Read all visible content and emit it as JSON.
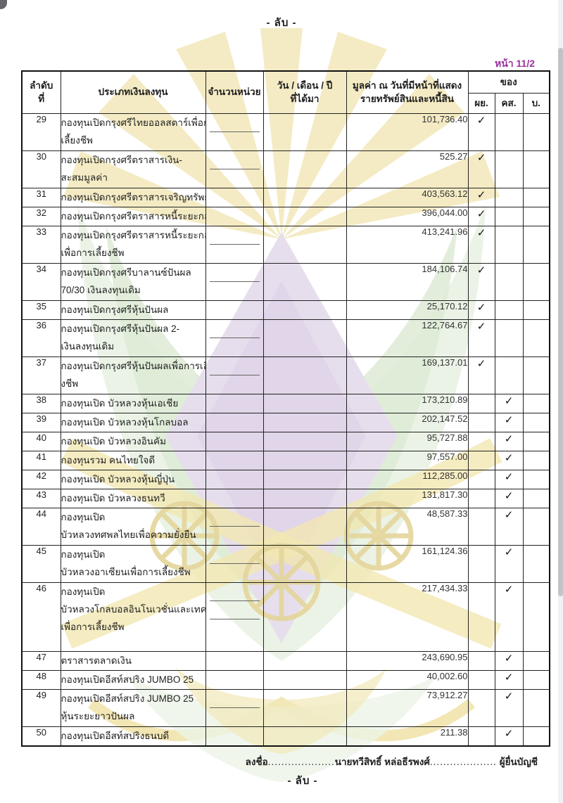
{
  "header": {
    "classification": "- ลับ -",
    "page_label": "หน้า 11/2"
  },
  "table": {
    "columns": {
      "no_line1": "ลำดับ",
      "no_line2": "ที่",
      "type": "ประเภทเงินลงทุน",
      "units": "จำนวนหน่วย",
      "date_line1": "วัน / เดือน / ปี",
      "date_line2": "ที่ได้มา",
      "value_line1": "มูลค่า ณ วันที่มีหน้าที่แสดง",
      "value_line2": "รายทรัพย์สินและหนี้สิน",
      "of": "ของ",
      "of_sub": [
        "ผย.",
        "คส.",
        "บ."
      ]
    },
    "check_mark": "✓",
    "rows": [
      {
        "no": "29",
        "name_lines": [
          "กองทุนเปิดกรุงศรีไทยออลสตาร์เพื่อการ",
          "เลี้ยงชีพ"
        ],
        "units": "",
        "date": "",
        "value": "101,736.40",
        "check": "ผย."
      },
      {
        "no": "30",
        "name_lines": [
          "กองทุนเปิดกรุงศรีตราสารเงิน-",
          "สะสมมูลค่า"
        ],
        "units": "",
        "date": "",
        "value": "525.27",
        "check": "ผย."
      },
      {
        "no": "31",
        "name_lines": [
          "กองทุนเปิดกรุงศรีตราสารเจริญทรัพย์"
        ],
        "units": "",
        "date": "",
        "value": "403,563.12",
        "check": "ผย."
      },
      {
        "no": "32",
        "name_lines": [
          "กองทุนเปิดกรุงศรีตราสารหนี้ระยะกลาง"
        ],
        "units": "",
        "date": "",
        "value": "396,044.00",
        "check": "ผย."
      },
      {
        "no": "33",
        "name_lines": [
          "กองทุนเปิดกรุงศรีตราสารหนี้ระยะกลาง",
          "เพื่อการเลี้ยงชีพ"
        ],
        "units": "",
        "date": "",
        "value": "413,241.96",
        "check": "ผย."
      },
      {
        "no": "34",
        "name_lines": [
          "กองทุนเปิดกรุงศรีบาลานซ์ปันผล",
          "70/30 เงินลงทุนเดิม"
        ],
        "units": "",
        "date": "",
        "value": "184,106.74",
        "check": "ผย."
      },
      {
        "no": "35",
        "name_lines": [
          "กองทุนเปิดกรุงศรีหุ้นปันผล"
        ],
        "units": "",
        "date": "",
        "value": "25,170.12",
        "check": "ผย."
      },
      {
        "no": "36",
        "name_lines": [
          "กองทุนเปิดกรุงศรีหุ้นปันผล 2-",
          "เงินลงทุนเดิม"
        ],
        "units": "",
        "date": "",
        "value": "122,764.67",
        "check": "ผย."
      },
      {
        "no": "37",
        "name_lines": [
          "กองทุนเปิดกรุงศรีหุ้นปันผลเพื่อการเลี้ย",
          "งชีพ"
        ],
        "units": "",
        "date": "",
        "value": "169,137.01",
        "check": "ผย."
      },
      {
        "no": "38",
        "name_lines": [
          "กองทุนเปิด บัวหลวงหุ้นเอเชีย"
        ],
        "units": "",
        "date": "",
        "value": "173,210.89",
        "check": "คส."
      },
      {
        "no": "39",
        "name_lines": [
          "กองทุนเปิด บัวหลวงหุ้นโกลบอล"
        ],
        "units": "",
        "date": "",
        "value": "202,147.52",
        "check": "คส."
      },
      {
        "no": "40",
        "name_lines": [
          "กองทุนเปิด บัวหลวงอินคัม"
        ],
        "units": "",
        "date": "",
        "value": "95,727.88",
        "check": "คส."
      },
      {
        "no": "41",
        "name_lines": [
          "กองทุนรวม คนไทยใจดี"
        ],
        "units": "",
        "date": "",
        "value": "97,557.00",
        "check": "คส."
      },
      {
        "no": "42",
        "name_lines": [
          "กองทุนเปิด บัวหลวงหุ้นญี่ปุ่น"
        ],
        "units": "",
        "date": "",
        "value": "112,285.00",
        "check": "คส."
      },
      {
        "no": "43",
        "name_lines": [
          "กองทุนเปิด บัวหลวงธนทวี"
        ],
        "units": "",
        "date": "",
        "value": "131,817.30",
        "check": "คส."
      },
      {
        "no": "44",
        "name_lines": [
          "กองทุนเปิด",
          "บัวหลวงทศพลไทยเพื่อความยั่งยืน"
        ],
        "units": "",
        "date": "",
        "value": "48,587.33",
        "check": "คส."
      },
      {
        "no": "45",
        "name_lines": [
          "กองทุนเปิด",
          "บัวหลวงอาเซียนเพื่อการเลี้ยงชีพ"
        ],
        "units": "",
        "date": "",
        "value": "161,124.36",
        "check": "คส."
      },
      {
        "no": "46",
        "name_lines": [
          "กองทุนเปิด",
          "บัวหลวงโกลบอลอินโนเวชั่นและเทคโนโล",
          "เพื่อการเลี้ยงชีพ"
        ],
        "units": "",
        "date": "",
        "value": "217,434.33",
        "check": "คส."
      },
      {
        "no": "47",
        "name_lines": [
          "ตราสารตลาดเงิน"
        ],
        "units": "",
        "date": "",
        "value": "243,690.95",
        "check": "คส."
      },
      {
        "no": "48",
        "name_lines": [
          "กองทุนเปิดอีสท์สปริง JUMBO 25"
        ],
        "units": "",
        "date": "",
        "value": "40,002.60",
        "check": "คส."
      },
      {
        "no": "49",
        "name_lines": [
          "กองทุนเปิดอีสท์สปริง JUMBO 25",
          "หุ้นระยะยาวปันผล"
        ],
        "units": "",
        "date": "",
        "value": "73,912.27",
        "check": "คส."
      },
      {
        "no": "50",
        "name_lines": [
          "กองทุนเปิดอีสท์สปริงธนบดี"
        ],
        "units": "",
        "date": "",
        "value": "211.38",
        "check": "คส."
      }
    ]
  },
  "footer": {
    "sign_label": "ลงชื่อ",
    "dots_left": "....................",
    "signer_name": "นายทวีสิทธิ์ หล่อธีรพงศ์",
    "dots_right": "....................",
    "role": "ผู้ยื่นบัญชี",
    "classification": "- ลับ -"
  },
  "colors": {
    "page_label": "#993399",
    "border": "#222222",
    "check": "#111111",
    "watermark_yellow": "#f2e7b4",
    "watermark_green": "#dcead4",
    "watermark_purple": "#e3d9eb"
  }
}
